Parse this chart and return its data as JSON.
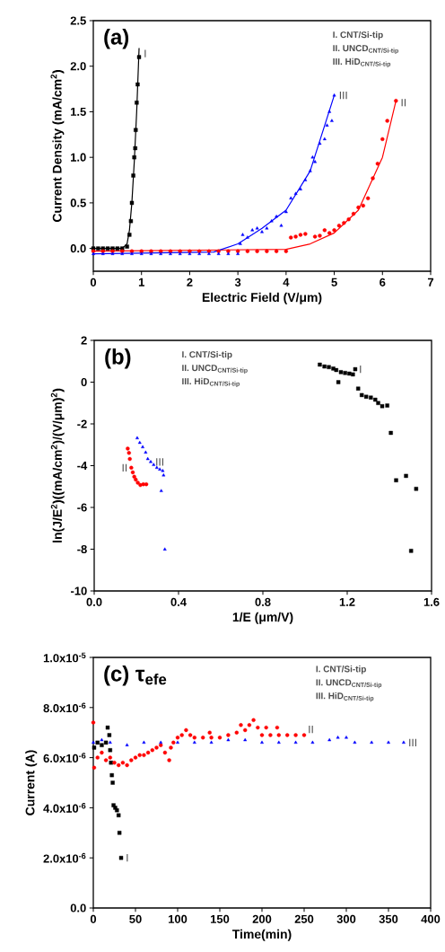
{
  "chart_data": [
    {
      "type": "scatter",
      "title": "(a)",
      "xlabel": "Electric Field (V/μm)",
      "ylabel": "Current Density (mA/cm$^{2}$)",
      "xlim": [
        0,
        7
      ],
      "ylim": [
        -0.25,
        2.5
      ],
      "xticks": [
        0,
        1,
        2,
        3,
        4,
        5,
        6,
        7
      ],
      "yticks": [
        {
          "value": 0,
          "label": "0.0"
        },
        0.5,
        {
          "value": 1,
          "label": "1.0"
        },
        1.5,
        {
          "value": 2,
          "label": "2.0"
        },
        2.5
      ],
      "annotations": [
        "I. CNT/Si-tip",
        "II. UNCD$_{CNT/Si-tip}$",
        "III. HiD$_{CNT/Si-tip}$"
      ],
      "series": [
        {
          "name": "I",
          "color": "#000000",
          "marker": "square",
          "x": [
            0,
            0.1,
            0.2,
            0.3,
            0.4,
            0.5,
            0.6,
            0.7,
            0.75,
            0.78,
            0.8,
            0.83,
            0.85,
            0.87,
            0.88,
            0.9,
            0.92,
            0.95
          ],
          "values": [
            0,
            0,
            0,
            0,
            0,
            0,
            0,
            0.02,
            0.15,
            0.3,
            0.5,
            0.8,
            1.0,
            1.1,
            1.3,
            1.6,
            1.8,
            2.1
          ]
        },
        {
          "name": "II",
          "color": "#ff0000",
          "marker": "circle",
          "x": [
            0,
            0.2,
            0.4,
            0.6,
            0.8,
            1.0,
            1.2,
            1.4,
            1.6,
            1.8,
            2.0,
            2.2,
            2.4,
            2.6,
            2.8,
            3.0,
            3.2,
            3.4,
            3.6,
            3.8,
            4.0,
            4.1,
            4.2,
            4.3,
            4.4,
            4.6,
            4.7,
            4.8,
            4.9,
            5.0,
            5.1,
            5.2,
            5.3,
            5.4,
            5.5,
            5.6,
            5.7,
            5.8,
            5.9,
            6.0,
            6.1,
            6.28
          ],
          "values": [
            -0.03,
            -0.03,
            -0.03,
            -0.03,
            -0.03,
            -0.03,
            -0.03,
            -0.03,
            -0.03,
            -0.03,
            -0.03,
            -0.03,
            -0.03,
            -0.03,
            -0.03,
            -0.03,
            -0.03,
            -0.03,
            -0.03,
            -0.03,
            -0.03,
            0.12,
            0.13,
            0.15,
            0.16,
            0.13,
            0.14,
            0.2,
            0.17,
            0.2,
            0.25,
            0.28,
            0.32,
            0.38,
            0.45,
            0.47,
            0.55,
            0.77,
            0.93,
            1.2,
            1.4,
            1.62
          ]
        },
        {
          "name": "III",
          "color": "#0000ff",
          "marker": "triangle",
          "x": [
            0,
            0.2,
            0.4,
            0.6,
            0.8,
            1.0,
            1.2,
            1.4,
            1.6,
            1.8,
            2.0,
            2.2,
            2.4,
            2.6,
            2.8,
            3.0,
            3.05,
            3.1,
            3.2,
            3.3,
            3.4,
            3.5,
            3.6,
            3.7,
            3.8,
            3.9,
            4.0,
            4.1,
            4.2,
            4.3,
            4.4,
            4.5,
            4.55,
            4.6,
            4.7,
            4.8,
            4.85,
            4.9,
            4.95,
            5.0
          ],
          "values": [
            -0.06,
            -0.06,
            -0.06,
            -0.06,
            -0.06,
            -0.06,
            -0.06,
            -0.06,
            -0.06,
            -0.06,
            -0.06,
            -0.06,
            -0.06,
            -0.06,
            -0.06,
            -0.06,
            0.05,
            0.15,
            0.12,
            0.2,
            0.22,
            0.18,
            0.22,
            0.3,
            0.35,
            0.25,
            0.4,
            0.55,
            0.6,
            0.65,
            0.75,
            0.85,
            1.0,
            0.95,
            1.15,
            1.2,
            1.35,
            1.5,
            1.4,
            1.68
          ]
        },
        {
          "type": "line",
          "color": "#000000",
          "x": [
            0,
            0.6,
            0.7,
            0.75,
            0.8,
            0.85,
            0.9,
            0.95
          ],
          "values": [
            0,
            0,
            0.05,
            0.2,
            0.5,
            0.95,
            1.5,
            2.2
          ]
        },
        {
          "type": "line",
          "color": "#ff0000",
          "x": [
            0,
            4.0,
            4.5,
            5.0,
            5.5,
            6.0,
            6.28
          ],
          "values": [
            -0.03,
            -0.01,
            0.05,
            0.17,
            0.42,
            1.0,
            1.62
          ]
        },
        {
          "type": "line",
          "color": "#0000ff",
          "x": [
            0,
            2.5,
            3.0,
            3.5,
            4.0,
            4.5,
            5.0
          ],
          "values": [
            -0.06,
            -0.04,
            0.05,
            0.22,
            0.42,
            0.85,
            1.68
          ]
        }
      ]
    },
    {
      "type": "scatter",
      "title": "(b)",
      "xlabel": "1/E (μm/V)",
      "ylabel": "ln(J/E$^{2}$)((mA/cm$^{2}$)/(V/μm)$^{2}$)",
      "xlim": [
        0,
        1.6
      ],
      "ylim": [
        -10,
        2
      ],
      "xticks": [
        {
          "value": 0,
          "label": "0.0"
        },
        0.4,
        0.8,
        1.2,
        1.6
      ],
      "yticks": [
        -10,
        -8,
        -6,
        -4,
        -2,
        0,
        2
      ],
      "annotations": [
        "I. CNT/Si-tip",
        "II. UNCD$_{CNT/Si-tip}$",
        "III. HiD$_{CNT/Si-tip}$"
      ],
      "series": [
        {
          "name": "I",
          "color": "#000000",
          "marker": "square",
          "x": [
            1.07,
            1.092,
            1.113,
            1.134,
            1.148,
            1.158,
            1.17,
            1.19,
            1.21,
            1.227,
            1.238,
            1.252,
            1.269,
            1.29,
            1.312,
            1.333,
            1.347,
            1.366,
            1.39,
            1.407,
            1.432,
            1.479,
            1.503,
            1.527
          ],
          "values": [
            0.84,
            0.75,
            0.72,
            0.65,
            0.58,
            0.0,
            0.48,
            0.44,
            0.41,
            0.37,
            0.62,
            -0.31,
            -0.62,
            -0.7,
            -0.74,
            -0.84,
            -1.0,
            -1.15,
            -1.12,
            -2.43,
            -4.7,
            -4.49,
            -8.08,
            -5.11
          ]
        },
        {
          "name": "II",
          "color": "#ff0000",
          "marker": "circle",
          "x": [
            0.159,
            0.165,
            0.169,
            0.176,
            0.183,
            0.19,
            0.197,
            0.207,
            0.219,
            0.233,
            0.247
          ],
          "values": [
            -3.18,
            -3.39,
            -3.68,
            -4.1,
            -4.32,
            -4.53,
            -4.67,
            -4.82,
            -4.93,
            -4.89,
            -4.89
          ]
        },
        {
          "name": "III",
          "color": "#0000ff",
          "marker": "triangle",
          "x": [
            0.204,
            0.216,
            0.23,
            0.244,
            0.254,
            0.268,
            0.282,
            0.297,
            0.311,
            0.325,
            0.329,
            0.318,
            0.335
          ],
          "values": [
            -2.68,
            -2.9,
            -3.11,
            -3.37,
            -3.68,
            -3.82,
            -3.96,
            -4.1,
            -4.18,
            -4.25,
            -4.46,
            -5.21,
            -8.01
          ]
        }
      ]
    },
    {
      "type": "scatter",
      "title": "(c) τ$_{efe}$",
      "xlabel": "Time(min)",
      "ylabel": "Current (A)",
      "xlim": [
        0,
        400
      ],
      "ylim": [
        0,
        1e-05
      ],
      "xticks": [
        0,
        50,
        100,
        150,
        200,
        250,
        300,
        350,
        400
      ],
      "yticks": [
        {
          "value": 0,
          "label": "0.0"
        },
        {
          "value": 2e-06,
          "label": "2.0x10$^{-6}$"
        },
        {
          "value": 4e-06,
          "label": "4.0x10$^{-6}$"
        },
        {
          "value": 6e-06,
          "label": "6.0x10$^{-6}$"
        },
        {
          "value": 8e-06,
          "label": "8.0x10$^{-6}$"
        },
        {
          "value": 1e-05,
          "label": "1.0x10$^{-5}$"
        }
      ],
      "annotations": [
        "I. CNT/Si-tip",
        "II. UNCD$_{CNT/Si-tip}$",
        "III. HiD$_{CNT/Si-tip}$"
      ],
      "series": [
        {
          "name": "I",
          "color": "#000000",
          "marker": "square",
          "x": [
            1,
            5,
            10,
            15,
            17,
            19,
            20,
            21,
            22,
            23,
            24,
            26,
            28,
            30,
            31,
            33
          ],
          "values": [
            6.4e-06,
            6.6e-06,
            6.5e-06,
            6.6e-06,
            7.2e-06,
            6.9e-06,
            6.3e-06,
            5.8e-06,
            5.3e-06,
            5e-06,
            4.1e-06,
            4e-06,
            3.9e-06,
            3.7e-06,
            3e-06,
            2e-06
          ]
        },
        {
          "name": "II",
          "color": "#ff0000",
          "marker": "circle",
          "x": [
            0,
            1,
            5,
            10,
            15,
            20,
            25,
            30,
            35,
            40,
            45,
            50,
            55,
            60,
            65,
            70,
            75,
            80,
            85,
            90,
            92,
            95,
            100,
            105,
            110,
            115,
            120,
            130,
            138,
            140,
            150,
            160,
            170,
            175,
            180,
            185,
            190,
            195,
            200,
            205,
            210,
            218,
            220,
            230,
            240,
            250
          ],
          "values": [
            7.4e-06,
            5.6e-06,
            6e-06,
            6.2e-06,
            5.9e-06,
            6e-06,
            5.8e-06,
            5.7e-06,
            5.8e-06,
            5.7e-06,
            5.9e-06,
            6e-06,
            6.1e-06,
            6.1e-06,
            6.2e-06,
            6.3e-06,
            6.4e-06,
            6.5e-06,
            6.2e-06,
            5.9e-06,
            6.4e-06,
            6.6e-06,
            6.8e-06,
            6.9e-06,
            7.1e-06,
            6.9e-06,
            6.8e-06,
            6.8e-06,
            7e-06,
            6.8e-06,
            6.8e-06,
            6.9e-06,
            7e-06,
            7.3e-06,
            7.1e-06,
            7.3e-06,
            7.5e-06,
            7.2e-06,
            6.9e-06,
            7.2e-06,
            6.9e-06,
            7.2e-06,
            6.9e-06,
            6.9e-06,
            6.9e-06,
            6.9e-06
          ]
        },
        {
          "name": "III",
          "color": "#0000ff",
          "marker": "triangle",
          "x": [
            0,
            10,
            20,
            40,
            60,
            80,
            100,
            120,
            140,
            160,
            180,
            200,
            220,
            240,
            260,
            280,
            290,
            300,
            310,
            330,
            350,
            368
          ],
          "values": [
            6.6e-06,
            6.7e-06,
            6.6e-06,
            6.5e-06,
            6.6e-06,
            6.6e-06,
            6.6e-06,
            6.6e-06,
            6.6e-06,
            6.7e-06,
            6.7e-06,
            6.6e-06,
            6.6e-06,
            6.6e-06,
            6.6e-06,
            6.7e-06,
            6.8e-06,
            6.8e-06,
            6.6e-06,
            6.6e-06,
            6.6e-06,
            6.6e-06
          ]
        }
      ]
    }
  ]
}
